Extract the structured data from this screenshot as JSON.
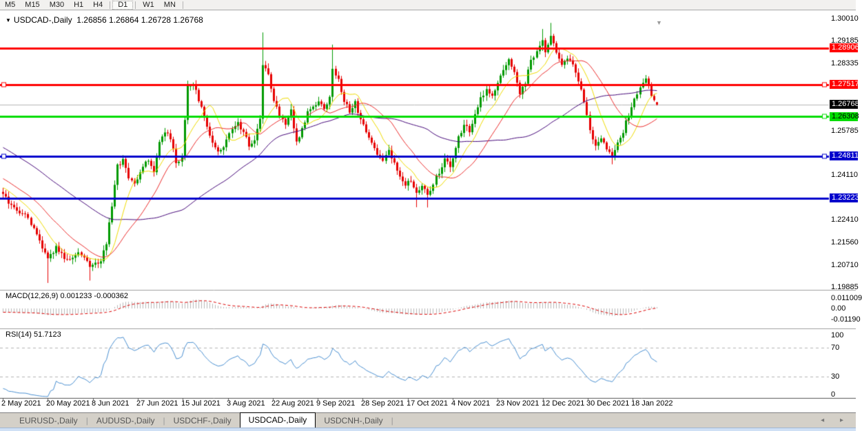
{
  "toolbar": {
    "timeframes": [
      "M5",
      "M15",
      "M30",
      "H1",
      "H4",
      "D1",
      "W1",
      "MN"
    ],
    "active": "D1"
  },
  "chart": {
    "title": {
      "arrow": "▼",
      "symbol": "USDCAD-,Daily",
      "ohlc": "1.26856 1.26864 1.26728 1.26768"
    },
    "macd_label": "MACD(12,26,9) 0.001233 -0.000362",
    "rsi_label": "RSI(14) 51.7123",
    "price_ticks": [
      "1.30010",
      "1.29185",
      "1.28335",
      "1.25785",
      "1.24110",
      "1.22410",
      "1.21560",
      "1.20710",
      "1.19885"
    ],
    "price_tick_values": [
      1.3001,
      1.29185,
      1.28335,
      1.25785,
      1.2411,
      1.2241,
      1.2156,
      1.2071,
      1.19885
    ],
    "macd_ticks": [
      {
        "label": "0.011009",
        "value": 0.011009
      },
      {
        "label": "0.00",
        "value": 0.0
      },
      {
        "label": "-0.01190",
        "value": -0.0119
      }
    ],
    "rsi_ticks": [
      {
        "label": "100",
        "value": 100
      },
      {
        "label": "70",
        "value": 70
      },
      {
        "label": "30",
        "value": 30
      },
      {
        "label": "0",
        "value": 0
      }
    ],
    "dates": [
      "2 May 2021",
      "20 May 2021",
      "8 Jun 2021",
      "27 Jun 2021",
      "15 Jul 2021",
      "3 Aug 2021",
      "22 Aug 2021",
      "9 Sep 2021",
      "28 Sep 2021",
      "17 Oct 2021",
      "4 Nov 2021",
      "23 Nov 2021",
      "12 Dec 2021",
      "30 Dec 2021",
      "18 Jan 2022"
    ],
    "current_price": {
      "label": "1.26768",
      "value": 1.26768,
      "badge_bg": "#000000",
      "badge_fg": "#ffffff"
    },
    "levels": [
      {
        "label": "1.28906",
        "price": 1.28906,
        "color": "#ff0000",
        "text": "#ffffff",
        "left_handle": false,
        "right_handle": false
      },
      {
        "label": "1.27517",
        "price": 1.27517,
        "color": "#ff0000",
        "text": "#ffffff",
        "left_handle": true,
        "right_handle": true
      },
      {
        "label": "1.26308",
        "price": 1.26308,
        "color": "#00dd00",
        "text": "#000000",
        "left_handle": false,
        "right_handle": true
      },
      {
        "label": "1.24811",
        "price": 1.24811,
        "color": "#0000cc",
        "text": "#ffffff",
        "left_handle": true,
        "right_handle": true
      },
      {
        "label": "1.23223",
        "price": 1.23223,
        "color": "#0000cc",
        "text": "#ffffff",
        "left_handle": false,
        "right_handle": false
      }
    ],
    "shift_marker": "▼"
  },
  "chart_data": {
    "type": "candlestick",
    "symbol": "USDCAD",
    "period": "Daily",
    "bars": 235,
    "history_bars": 80,
    "last_bar": {
      "o": 1.26856,
      "h": 1.26864,
      "l": 1.26728,
      "c": 1.26768
    },
    "price_axis": {
      "min": 1.19885,
      "max": 1.3001,
      "ticks_every": 0.0085
    },
    "close_waypoints": [
      [
        -80,
        1.277
      ],
      [
        -55,
        1.2675
      ],
      [
        -30,
        1.252
      ],
      [
        -12,
        1.24
      ],
      [
        -1,
        1.2345
      ],
      [
        0,
        1.2335
      ],
      [
        4,
        1.2285
      ],
      [
        8,
        1.226
      ],
      [
        12,
        1.2185
      ],
      [
        16,
        1.209
      ],
      [
        19,
        1.2135
      ],
      [
        23,
        1.2085
      ],
      [
        27,
        1.2115
      ],
      [
        31,
        1.2068
      ],
      [
        35,
        1.2085
      ],
      [
        37,
        1.2155
      ],
      [
        39,
        1.2295
      ],
      [
        41,
        1.2445
      ],
      [
        43,
        1.2468
      ],
      [
        45,
        1.24
      ],
      [
        47,
        1.2375
      ],
      [
        50,
        1.2448
      ],
      [
        52,
        1.2472
      ],
      [
        54,
        1.2415
      ],
      [
        56,
        1.2538
      ],
      [
        58,
        1.2572
      ],
      [
        60,
        1.2552
      ],
      [
        62,
        1.2455
      ],
      [
        64,
        1.2478
      ],
      [
        65,
        1.2625
      ],
      [
        66,
        1.2742
      ],
      [
        68,
        1.2758
      ],
      [
        70,
        1.2695
      ],
      [
        72,
        1.2628
      ],
      [
        74,
        1.2555
      ],
      [
        76,
        1.2512
      ],
      [
        78,
        1.2498
      ],
      [
        80,
        1.2542
      ],
      [
        82,
        1.2582
      ],
      [
        84,
        1.2608
      ],
      [
        86,
        1.2572
      ],
      [
        88,
        1.2522
      ],
      [
        90,
        1.2548
      ],
      [
        92,
        1.2622
      ],
      [
        93,
        1.2832
      ],
      [
        95,
        1.2792
      ],
      [
        97,
        1.2692
      ],
      [
        99,
        1.2642
      ],
      [
        101,
        1.2608
      ],
      [
        103,
        1.2652
      ],
      [
        105,
        1.2532
      ],
      [
        107,
        1.2582
      ],
      [
        109,
        1.2648
      ],
      [
        111,
        1.2662
      ],
      [
        113,
        1.2692
      ],
      [
        115,
        1.2668
      ],
      [
        117,
        1.2702
      ],
      [
        118,
        1.2818
      ],
      [
        120,
        1.2768
      ],
      [
        122,
        1.2692
      ],
      [
        124,
        1.2652
      ],
      [
        126,
        1.2682
      ],
      [
        128,
        1.2622
      ],
      [
        130,
        1.2572
      ],
      [
        132,
        1.2532
      ],
      [
        134,
        1.2492
      ],
      [
        136,
        1.2468
      ],
      [
        138,
        1.2502
      ],
      [
        140,
        1.2452
      ],
      [
        142,
        1.2402
      ],
      [
        144,
        1.2372
      ],
      [
        146,
        1.2392
      ],
      [
        148,
        1.2342
      ],
      [
        150,
        1.2368
      ],
      [
        152,
        1.2332
      ],
      [
        154,
        1.2382
      ],
      [
        156,
        1.2422
      ],
      [
        158,
        1.2472
      ],
      [
        160,
        1.2442
      ],
      [
        161,
        1.2472
      ],
      [
        163,
        1.2552
      ],
      [
        165,
        1.2602
      ],
      [
        167,
        1.2578
      ],
      [
        169,
        1.2642
      ],
      [
        171,
        1.2702
      ],
      [
        173,
        1.2732
      ],
      [
        175,
        1.2712
      ],
      [
        177,
        1.2762
      ],
      [
        179,
        1.2802
      ],
      [
        181,
        1.2842
      ],
      [
        183,
        1.2792
      ],
      [
        185,
        1.2722
      ],
      [
        187,
        1.2762
      ],
      [
        189,
        1.2842
      ],
      [
        191,
        1.2882
      ],
      [
        193,
        1.2912
      ],
      [
        194,
        1.2882
      ],
      [
        196,
        1.2932
      ],
      [
        198,
        1.2872
      ],
      [
        200,
        1.2832
      ],
      [
        202,
        1.2856
      ],
      [
        204,
        1.2832
      ],
      [
        206,
        1.2772
      ],
      [
        208,
        1.2682
      ],
      [
        210,
        1.2582
      ],
      [
        212,
        1.2522
      ],
      [
        214,
        1.2552
      ],
      [
        216,
        1.2512
      ],
      [
        218,
        1.2478
      ],
      [
        220,
        1.2532
      ],
      [
        222,
        1.2576
      ],
      [
        224,
        1.2642
      ],
      [
        226,
        1.2702
      ],
      [
        228,
        1.2742
      ],
      [
        230,
        1.2772
      ],
      [
        231,
        1.2746
      ],
      [
        232,
        1.2702
      ],
      [
        233,
        1.2688
      ],
      [
        234,
        1.26768
      ]
    ],
    "special_wicks": {
      "16": {
        "low": 1.2003
      },
      "31": {
        "low": 1.2012
      },
      "93": {
        "high": 1.2949
      },
      "118": {
        "high": 1.2903
      },
      "148": {
        "low": 1.2289
      },
      "152": {
        "low": 1.2288
      },
      "193": {
        "high": 1.2962
      },
      "196": {
        "high": 1.2985
      },
      "218": {
        "low": 1.2451
      }
    },
    "moving_averages": [
      {
        "period": 60,
        "color": "#46087a"
      },
      {
        "period": 10,
        "color": "#f0dc00"
      },
      {
        "period": 22,
        "color": "#ed2d2d"
      }
    ],
    "macd": {
      "fast": 12,
      "slow": 26,
      "signal": 9,
      "main_value": 0.001233,
      "signal_value": -0.000362,
      "hist_color": "#b8b8b8",
      "signal_color": "#dd0000"
    },
    "rsi": {
      "period": 14,
      "value": 51.7123,
      "levels": [
        70,
        30
      ],
      "color": "#4a90d2"
    },
    "colors": {
      "bull": "#009a00",
      "bear": "#e60000",
      "current_line": "#b5b5b5"
    }
  },
  "tabs": {
    "items": [
      {
        "label": "EURUSD-,Daily",
        "active": false
      },
      {
        "label": "AUDUSD-,Daily",
        "active": false
      },
      {
        "label": "USDCHF-,Daily",
        "active": false
      },
      {
        "label": "USDCAD-,Daily",
        "active": true
      },
      {
        "label": "USDCNH-,Daily",
        "active": false
      }
    ],
    "scroll_left": "◂",
    "scroll_right": "▸"
  }
}
